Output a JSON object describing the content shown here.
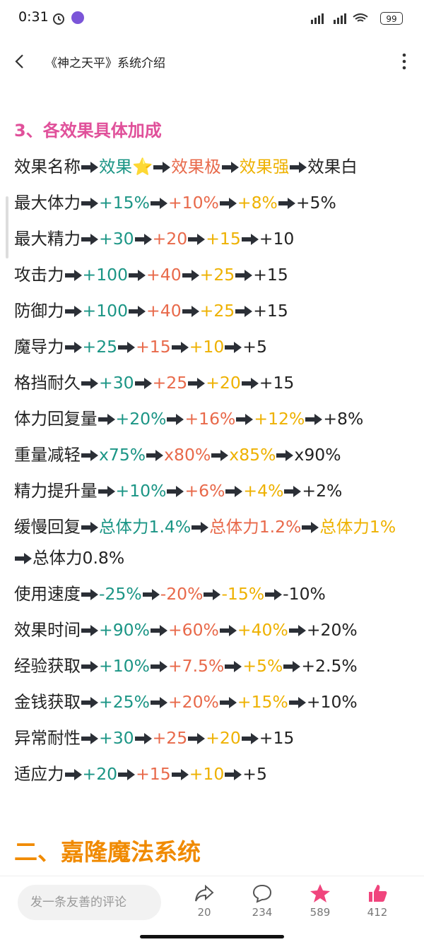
{
  "status_bar": {
    "time": "0:31",
    "battery": "99"
  },
  "header": {
    "title": "《神之天平》系统介绍"
  },
  "article": {
    "section_heading": "3、各效果具体加成",
    "table_header": {
      "name": "效果名称",
      "levels": [
        "效果⭐",
        "效果极",
        "效果强",
        "效果白"
      ]
    },
    "rows": [
      {
        "name": "最大体力",
        "values": [
          "+15%",
          "+10%",
          "+8%",
          "+5%"
        ]
      },
      {
        "name": "最大精力",
        "values": [
          "+30",
          "+20",
          "+15",
          "+10"
        ]
      },
      {
        "name": "攻击力",
        "values": [
          "+100",
          "+40",
          "+25",
          "+15"
        ]
      },
      {
        "name": "防御力",
        "values": [
          "+100",
          "+40",
          "+25",
          "+15"
        ]
      },
      {
        "name": "魔导力",
        "values": [
          "+25",
          "+15",
          "+10",
          "+5"
        ]
      },
      {
        "name": "格挡耐久",
        "values": [
          "+30",
          "+25",
          "+20",
          "+15"
        ]
      },
      {
        "name": "体力回复量",
        "values": [
          "+20%",
          "+16%",
          "+12%",
          "+8%"
        ]
      },
      {
        "name": "重量减轻",
        "values": [
          "x75%",
          "x80%",
          "x85%",
          "x90%"
        ]
      },
      {
        "name": "精力提升量",
        "values": [
          "+10%",
          "+6%",
          "+4%",
          "+2%"
        ]
      },
      {
        "name": "缓慢回复",
        "values": [
          "总体力1.4%",
          "总体力1.2%",
          "总体力1%",
          "总体力0.8%"
        ]
      },
      {
        "name": "使用速度",
        "values": [
          "-25%",
          "-20%",
          "-15%",
          "-10%"
        ]
      },
      {
        "name": "效果时间",
        "values": [
          "+90%",
          "+60%",
          "+40%",
          "+20%"
        ]
      },
      {
        "name": "经验获取",
        "values": [
          "+10%",
          "+7.5%",
          "+5%",
          "+2.5%"
        ]
      },
      {
        "name": "金钱获取",
        "values": [
          "+25%",
          "+20%",
          "+15%",
          "+10%"
        ]
      },
      {
        "name": "异常耐性",
        "values": [
          "+30",
          "+25",
          "+20",
          "+15"
        ]
      },
      {
        "name": "适应力",
        "values": [
          "+20",
          "+15",
          "+10",
          "+5"
        ]
      }
    ],
    "next_heading": "二、嘉隆魔法系统"
  },
  "bottom_bar": {
    "comment_placeholder": "发一条友善的评论",
    "share_count": 20,
    "comment_count": 234,
    "favorite_count": 589,
    "like_count": 412
  }
}
